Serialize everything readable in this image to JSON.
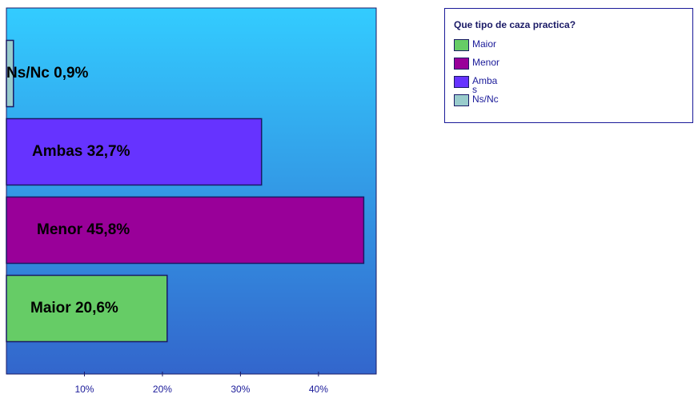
{
  "chart_data": {
    "type": "barh",
    "categories": [
      "Maior",
      "Menor",
      "Ambas",
      "Ns/Nc"
    ],
    "values": [
      20.6,
      45.8,
      32.7,
      0.9
    ],
    "value_labels": [
      "Maior 20,6%",
      "Menor 45,8%",
      "Ambas 32,7%",
      "Ns/Nc 0,9%"
    ],
    "colors": [
      "#66cc66",
      "#990099",
      "#6633ff",
      "#99cccc"
    ],
    "xlim": [
      0,
      47.4
    ],
    "xticks": [
      {
        "value": 10,
        "label": "10%"
      },
      {
        "value": 20,
        "label": "20%"
      },
      {
        "value": 30,
        "label": "30%"
      },
      {
        "value": 40,
        "label": "40%"
      }
    ],
    "legend_title": "Que tipo de caza practica?",
    "legend": "top-right"
  }
}
